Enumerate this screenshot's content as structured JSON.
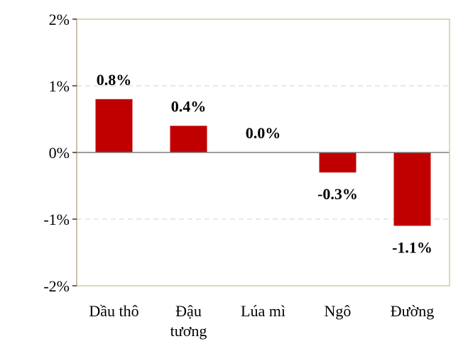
{
  "chart_data": {
    "type": "bar",
    "categories": [
      [
        "Dầu thô"
      ],
      [
        "Đậu",
        "tương"
      ],
      [
        "Lúa mì"
      ],
      [
        "Ngô"
      ],
      [
        "Đường"
      ]
    ],
    "values": [
      0.8,
      0.4,
      0.0,
      -0.3,
      -1.1
    ],
    "data_labels": [
      "0.8%",
      "0.4%",
      "0.0%",
      "-0.3%",
      "-1.1%"
    ],
    "y_ticks": [
      2,
      1,
      0,
      -1,
      -2
    ],
    "y_tick_labels": [
      "2%",
      "1%",
      "0%",
      "-1%",
      "-2%"
    ],
    "ylim": [
      -2,
      2
    ],
    "grid": "horizontal dashed",
    "title": "",
    "xlabel": "",
    "ylabel": "",
    "colors": {
      "bar": "#C00000",
      "frame": "#C9BC93",
      "gridline": "#D9D9D9",
      "zero_line": "#7F7F7F",
      "text": "#000000"
    }
  }
}
